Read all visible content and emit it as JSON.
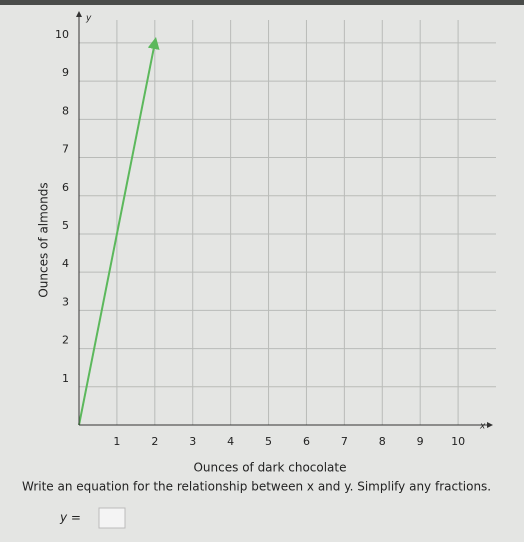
{
  "chart_data": {
    "type": "line",
    "x_label": "Ounces of dark chocolate",
    "y_label": "Ounces of almonds",
    "x_axis_symbol": "x",
    "y_axis_symbol": "y",
    "x": [
      0,
      2
    ],
    "series": [
      {
        "color": "#5cb85c",
        "values": [
          0,
          10
        ]
      }
    ],
    "xlim": [
      0,
      11
    ],
    "ylim": [
      0,
      10.6
    ],
    "xticks": [
      1,
      2,
      3,
      4,
      5,
      6,
      7,
      8,
      9,
      10
    ],
    "yticks": [
      1,
      2,
      3,
      4,
      5,
      6,
      7,
      8,
      9,
      10
    ],
    "grid": true
  },
  "question": {
    "prompt": "Write an equation for the relationship between x and y. Simplify any fractions.",
    "answer_prefix": "y ="
  }
}
